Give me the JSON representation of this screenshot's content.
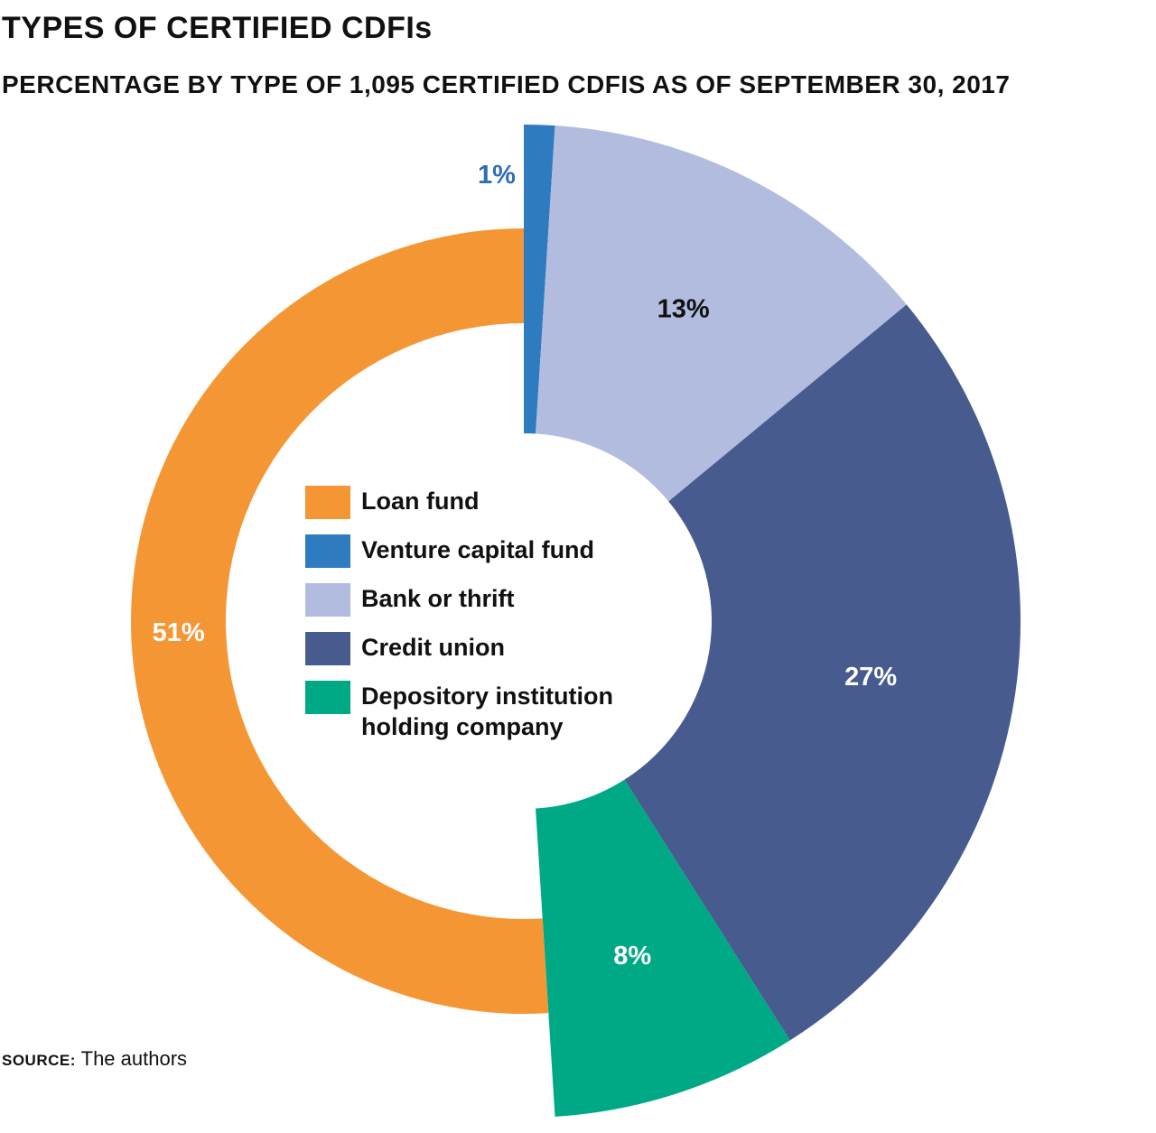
{
  "chart_data": {
    "type": "pie",
    "title": "TYPES OF CERTIFIED CDFIs",
    "subtitle": "PERCENTAGE BY TYPE OF 1,095 CERTIFIED CDFIS AS OF SEPTEMBER 30, 2017",
    "slices": [
      {
        "name": "Venture capital fund",
        "value": 1,
        "label": "1%",
        "color": "#2e7bbf",
        "label_color": "#2e6db4",
        "label_position": "outside"
      },
      {
        "name": "Bank or thrift",
        "value": 13,
        "label": "13%",
        "color": "#b1bcdf",
        "label_color": "#111111"
      },
      {
        "name": "Credit union",
        "value": 27,
        "label": "27%",
        "color": "#475b8f",
        "label_color": "#ffffff"
      },
      {
        "name": "Depository institution holding company",
        "value": 8,
        "label": "8%",
        "color": "#00a985",
        "label_color": "#ffffff"
      },
      {
        "name": "Loan fund",
        "value": 51,
        "label": "51%",
        "color": "#f59635",
        "label_color": "#ffffff",
        "inner_ring": true
      }
    ]
  },
  "legend": [
    {
      "label": "Loan fund",
      "color": "#f59635"
    },
    {
      "label": "Venture capital fund",
      "color": "#2e7bbf"
    },
    {
      "label": "Bank or thrift",
      "color": "#b1bcdf"
    },
    {
      "label": "Credit union",
      "color": "#475b8f"
    },
    {
      "label": "Depository institution holding company",
      "color": "#00a985"
    }
  ],
  "source": {
    "label": "SOURCE:",
    "text": "The authors"
  }
}
